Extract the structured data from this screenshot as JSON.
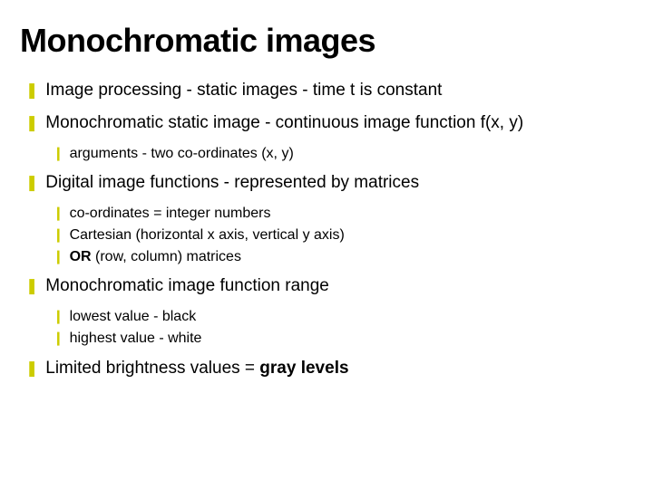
{
  "title": "Monochromatic images",
  "bullets": {
    "b1": "Image processing - static images - time t is constant",
    "b2": "Monochromatic static image - continuous image function f(x, y)",
    "b2a": "arguments - two co-ordinates (x, y)",
    "b3": "Digital image functions - represented by matrices",
    "b3a": "co-ordinates = integer numbers",
    "b3b": "Cartesian (horizontal x axis, vertical y axis)",
    "b3c_bold": "OR",
    "b3c_rest": " (row, column) matrices",
    "b4": "Monochromatic image function range",
    "b4a": "lowest value - black",
    "b4b": "highest value - white",
    "b5_pre": "Limited brightness values = ",
    "b5_bold": "gray levels"
  },
  "style": {
    "bullet_color": "#cccc00",
    "text_color": "#000000",
    "background": "#ffffff",
    "title_fontsize": 36,
    "lvl1_fontsize": 19,
    "lvl2_fontsize": 16,
    "lvl1_glyph": "❚",
    "lvl2_glyph": "❙"
  }
}
